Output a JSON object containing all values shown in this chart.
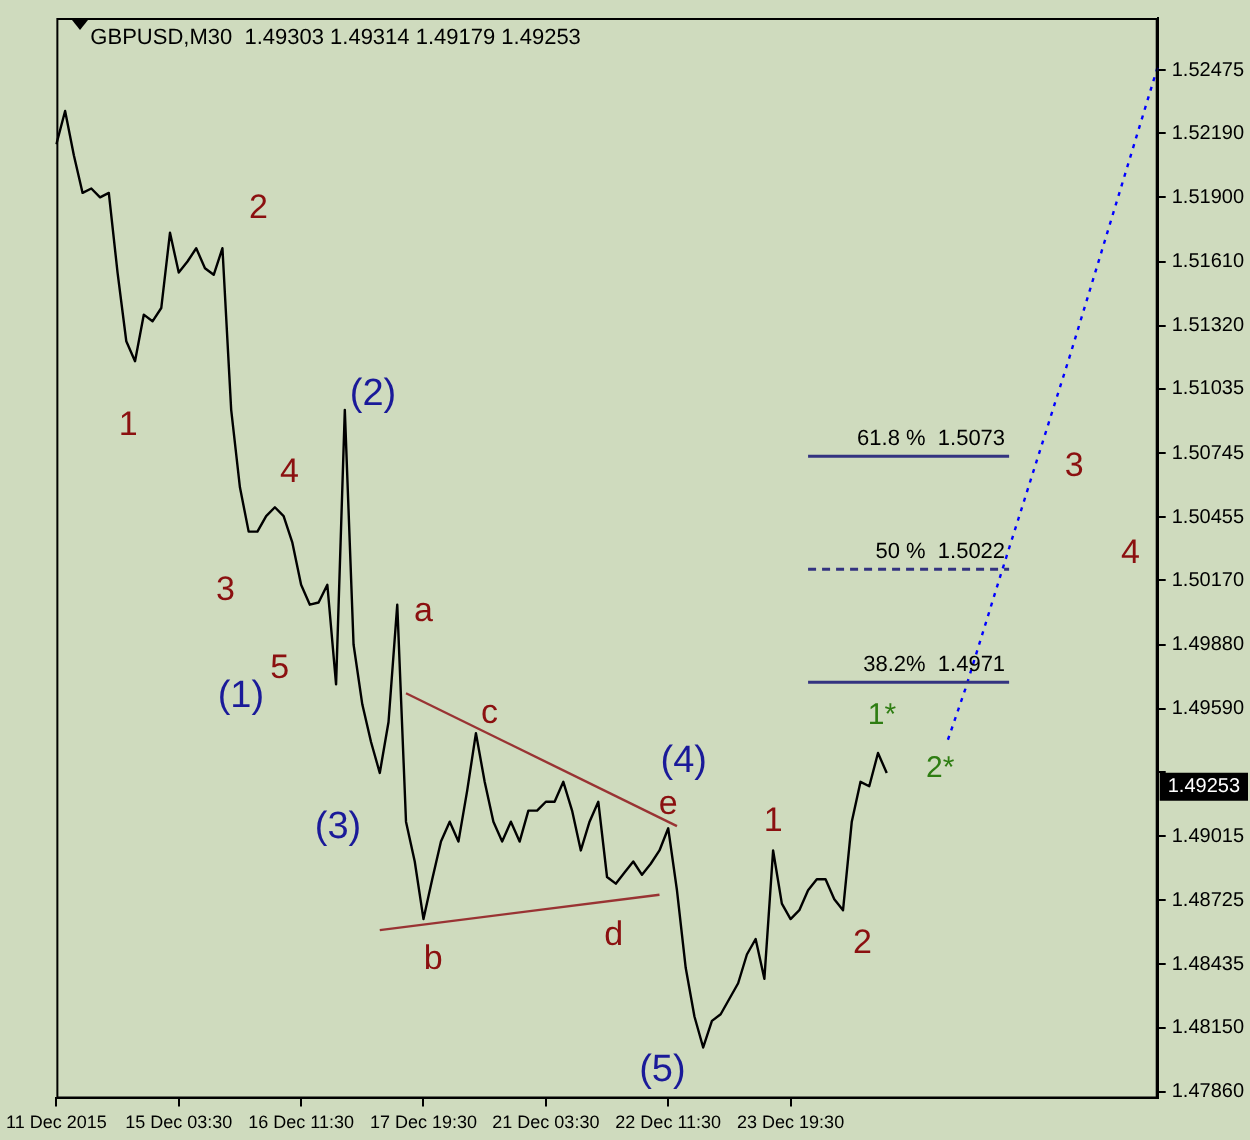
{
  "chart_data": {
    "type": "line",
    "title": "GBPUSD,M30  1.49303 1.49314 1.49179 1.49253",
    "categories": [
      "11 Dec 2015",
      null,
      null,
      null,
      null,
      null,
      null,
      null,
      null,
      null,
      null,
      null,
      null,
      null,
      "15 Dec 03:30",
      null,
      null,
      null,
      null,
      null,
      null,
      null,
      null,
      null,
      null,
      null,
      null,
      null,
      "16 Dec 11:30",
      null,
      null,
      null,
      null,
      null,
      null,
      null,
      null,
      null,
      null,
      null,
      null,
      null,
      "17 Dec 19:30",
      null,
      null,
      null,
      null,
      null,
      null,
      null,
      null,
      null,
      null,
      null,
      null,
      null,
      "21 Dec 03:30",
      null,
      null,
      null,
      null,
      null,
      null,
      null,
      null,
      null,
      null,
      null,
      null,
      null,
      "22 Dec 11:30",
      null,
      null,
      null,
      null,
      null,
      null,
      null,
      null,
      null,
      null,
      null,
      null,
      null,
      "23 Dec 19:30",
      null,
      null,
      null,
      null,
      null,
      null,
      null,
      null,
      null,
      null,
      null,
      null,
      null,
      null,
      null,
      null,
      null,
      null,
      null,
      null,
      null,
      null,
      null,
      null,
      null,
      null,
      null,
      null,
      null,
      null,
      null,
      null,
      null,
      null,
      null,
      null,
      null,
      null,
      null,
      null,
      null,
      null
    ],
    "series": [
      {
        "type": "line",
        "color": "#000000",
        "values": [
          1.5214,
          1.5229,
          1.5209,
          1.5192,
          1.5194,
          1.519,
          1.5192,
          1.5156,
          1.5125,
          1.5116,
          1.5137,
          1.5134,
          1.514,
          1.5174,
          1.5156,
          1.5161,
          1.5167,
          1.5158,
          1.5155,
          1.5167,
          1.5094,
          1.5059,
          1.5039,
          1.5039,
          1.5046,
          1.505,
          1.5046,
          1.5034,
          1.5015,
          1.5006,
          1.5007,
          1.5015,
          1.497,
          1.5094,
          1.4988,
          1.4961,
          1.4944,
          1.493,
          1.4953,
          1.5006,
          1.4908,
          1.489,
          1.4864,
          1.4882,
          1.4899,
          1.4908,
          1.4899,
          1.4922,
          1.4948,
          1.4926,
          1.4908,
          1.4899,
          1.4908,
          1.4899,
          1.4913,
          1.4913,
          1.4917,
          1.4917,
          1.4926,
          1.4913,
          1.4895,
          1.4908,
          1.4917,
          1.4883,
          1.488,
          1.4885,
          1.489,
          1.4884,
          1.4889,
          1.4895,
          1.4905,
          1.4877,
          1.4842,
          1.482,
          1.4806,
          1.4818,
          1.4821,
          1.4828,
          1.4835,
          1.4848,
          1.4855,
          1.4837,
          1.4895,
          1.4871,
          1.4864,
          1.4868,
          1.4877,
          1.4882,
          1.4882,
          1.4873,
          1.4868,
          1.4908,
          1.4926,
          1.4924,
          1.4939,
          1.493,
          null,
          null,
          null,
          null,
          null,
          null,
          null,
          null,
          null,
          null,
          null,
          null,
          null,
          null,
          null,
          null,
          null,
          null,
          null,
          null,
          null,
          null,
          null,
          null,
          null,
          null,
          null,
          null,
          null,
          null,
          null
        ]
      },
      {
        "type": "line",
        "color": "#993333",
        "values": [
          null,
          null,
          null,
          null,
          null,
          null,
          null,
          null,
          null,
          null,
          null,
          null,
          null,
          null,
          null,
          null,
          null,
          null,
          null,
          null,
          null,
          null,
          null,
          null,
          null,
          null,
          null,
          null,
          null,
          null,
          null,
          null,
          null,
          null,
          null,
          null,
          null,
          null,
          null,
          null,
          1.4966,
          null,
          null,
          null,
          null,
          null,
          null,
          null,
          null,
          null,
          null,
          null,
          null,
          null,
          null,
          null,
          null,
          null,
          null,
          null,
          null,
          null,
          null,
          null,
          null,
          null,
          null,
          null,
          null,
          null,
          null,
          1.4906,
          null,
          null,
          null,
          null,
          null,
          null,
          null,
          null,
          null,
          null,
          null,
          null,
          null,
          null,
          null,
          null,
          null,
          null,
          null,
          null,
          null,
          null,
          null,
          null,
          null,
          null,
          null,
          null,
          null,
          null,
          null,
          null,
          null,
          null,
          null,
          null,
          null,
          null,
          null,
          null,
          null,
          null,
          null,
          null,
          null,
          null,
          null,
          null,
          null,
          null,
          null,
          null,
          null,
          null,
          null
        ]
      },
      {
        "type": "line",
        "color": "#993333",
        "values": [
          null,
          null,
          null,
          null,
          null,
          null,
          null,
          null,
          null,
          null,
          null,
          null,
          null,
          null,
          null,
          null,
          null,
          null,
          null,
          null,
          null,
          null,
          null,
          null,
          null,
          null,
          null,
          null,
          null,
          null,
          null,
          null,
          null,
          null,
          null,
          null,
          null,
          1.4859,
          null,
          null,
          null,
          null,
          null,
          null,
          null,
          null,
          null,
          null,
          null,
          null,
          null,
          null,
          null,
          null,
          null,
          null,
          null,
          null,
          null,
          null,
          null,
          null,
          null,
          null,
          null,
          null,
          null,
          null,
          null,
          1.4875,
          null,
          null,
          null,
          null,
          null,
          null,
          null,
          null,
          null,
          null,
          null,
          null,
          null,
          null,
          null,
          null,
          null,
          null,
          null,
          null,
          null,
          null,
          null,
          null,
          null,
          null,
          null,
          null,
          null,
          null,
          null,
          null,
          null,
          null,
          null,
          null,
          null,
          null,
          null,
          null,
          null,
          null,
          null,
          null,
          null,
          null,
          null,
          null,
          null,
          null,
          null,
          null,
          null,
          null,
          null,
          null,
          null
        ]
      },
      {
        "type": "line",
        "color": "#0000ff",
        "line_style": "dotted",
        "values": [
          null,
          null,
          null,
          null,
          null,
          null,
          null,
          null,
          null,
          null,
          null,
          null,
          null,
          null,
          null,
          null,
          null,
          null,
          null,
          null,
          null,
          null,
          null,
          null,
          null,
          null,
          null,
          null,
          null,
          null,
          null,
          null,
          null,
          null,
          null,
          null,
          null,
          null,
          null,
          null,
          null,
          null,
          null,
          null,
          null,
          null,
          null,
          null,
          null,
          null,
          null,
          null,
          null,
          null,
          null,
          null,
          null,
          null,
          null,
          null,
          null,
          null,
          null,
          null,
          null,
          null,
          null,
          null,
          null,
          null,
          null,
          null,
          null,
          null,
          null,
          null,
          null,
          null,
          null,
          null,
          null,
          null,
          null,
          null,
          null,
          null,
          null,
          null,
          null,
          null,
          null,
          null,
          null,
          null,
          null,
          null,
          null,
          null,
          null,
          null,
          null,
          null,
          1.4945,
          null,
          1.4968,
          null,
          null,
          null,
          1.5019,
          null,
          null,
          null,
          1.5069,
          null,
          null,
          null,
          1.5119,
          null,
          null,
          null,
          null,
          null,
          null,
          null,
          null,
          null,
          1.5249
        ]
      }
    ],
    "ylim": [
      1.4783,
      1.5271
    ],
    "yticks": [
      1.52475,
      {
        "value": 1.5219,
        "label": "1.52190"
      },
      {
        "value": 1.519,
        "label": "1.51900"
      },
      {
        "value": 1.5161,
        "label": "1.51610"
      },
      {
        "value": 1.5132,
        "label": "1.51320"
      },
      1.51035,
      1.50745,
      1.50455,
      {
        "value": 1.5017,
        "label": "1.50170"
      },
      {
        "value": 1.4988,
        "label": "1.49880"
      },
      {
        "value": 1.4959,
        "label": "1.49590"
      },
      {
        "value": 1.49305,
        "label": null
      },
      1.49015,
      1.48725,
      1.48435,
      {
        "value": 1.4815,
        "label": "1.48150"
      },
      {
        "value": 1.4786,
        "label": "1.47860"
      }
    ],
    "ref_lines": [
      {
        "axis": "y",
        "value": 1.5073,
        "label": "61.8 %  1.5073",
        "color": "#333380",
        "line_style": "solid"
      },
      {
        "axis": "y",
        "value": 1.5022,
        "label": "50 %  1.5022",
        "color": "#333380",
        "line_style": "dashed"
      },
      {
        "axis": "y",
        "value": 1.4971,
        "label": "38.2%  1.4971",
        "color": "#333380",
        "line_style": "solid"
      }
    ],
    "annotations": [
      "1",
      "2",
      "3",
      "4",
      "5",
      "(1)",
      "(2)",
      "(3)",
      "(4)",
      "(5)",
      "a",
      "b",
      "c",
      "d",
      "e",
      "1",
      "2",
      "1*",
      "2*",
      "3",
      "4",
      "1.49253"
    ],
    "grid": false,
    "legend": false
  }
}
